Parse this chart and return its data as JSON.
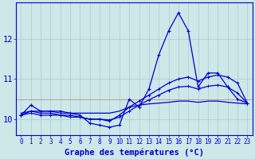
{
  "xlabel": "Graphe des températures (°C)",
  "hours": [
    0,
    1,
    2,
    3,
    4,
    5,
    6,
    7,
    8,
    9,
    10,
    11,
    12,
    13,
    14,
    15,
    16,
    17,
    18,
    19,
    20,
    21,
    22,
    23
  ],
  "temp_main": [
    10.1,
    10.35,
    10.2,
    10.2,
    10.2,
    10.15,
    10.1,
    9.9,
    9.85,
    9.8,
    9.85,
    10.5,
    10.3,
    10.75,
    11.6,
    12.2,
    12.65,
    12.2,
    10.8,
    11.15,
    11.15,
    10.8,
    10.5,
    10.4
  ],
  "temp_rise1": [
    10.1,
    10.2,
    10.15,
    10.15,
    10.1,
    10.1,
    10.05,
    10.0,
    10.0,
    9.95,
    10.1,
    10.3,
    10.45,
    10.6,
    10.75,
    10.9,
    11.0,
    11.05,
    10.95,
    11.05,
    11.1,
    11.05,
    10.9,
    10.4
  ],
  "temp_rise2": [
    10.1,
    10.15,
    10.1,
    10.1,
    10.1,
    10.05,
    10.05,
    10.0,
    10.0,
    9.98,
    10.05,
    10.2,
    10.35,
    10.48,
    10.6,
    10.72,
    10.8,
    10.82,
    10.75,
    10.82,
    10.85,
    10.8,
    10.65,
    10.4
  ],
  "temp_flat": [
    10.15,
    10.2,
    10.2,
    10.2,
    10.15,
    10.15,
    10.15,
    10.15,
    10.15,
    10.15,
    10.2,
    10.3,
    10.35,
    10.38,
    10.4,
    10.42,
    10.45,
    10.45,
    10.42,
    10.45,
    10.45,
    10.42,
    10.4,
    10.38
  ],
  "line_color": "#0000cd",
  "bg_color": "#cce8e8",
  "grid_color": "#aacccc",
  "ylim": [
    9.6,
    12.9
  ],
  "yticks": [
    10,
    11,
    12
  ],
  "xlim": [
    -0.5,
    23.5
  ],
  "xtick_fontsize": 5.5,
  "ytick_fontsize": 7.5,
  "xlabel_fontsize": 7.5
}
